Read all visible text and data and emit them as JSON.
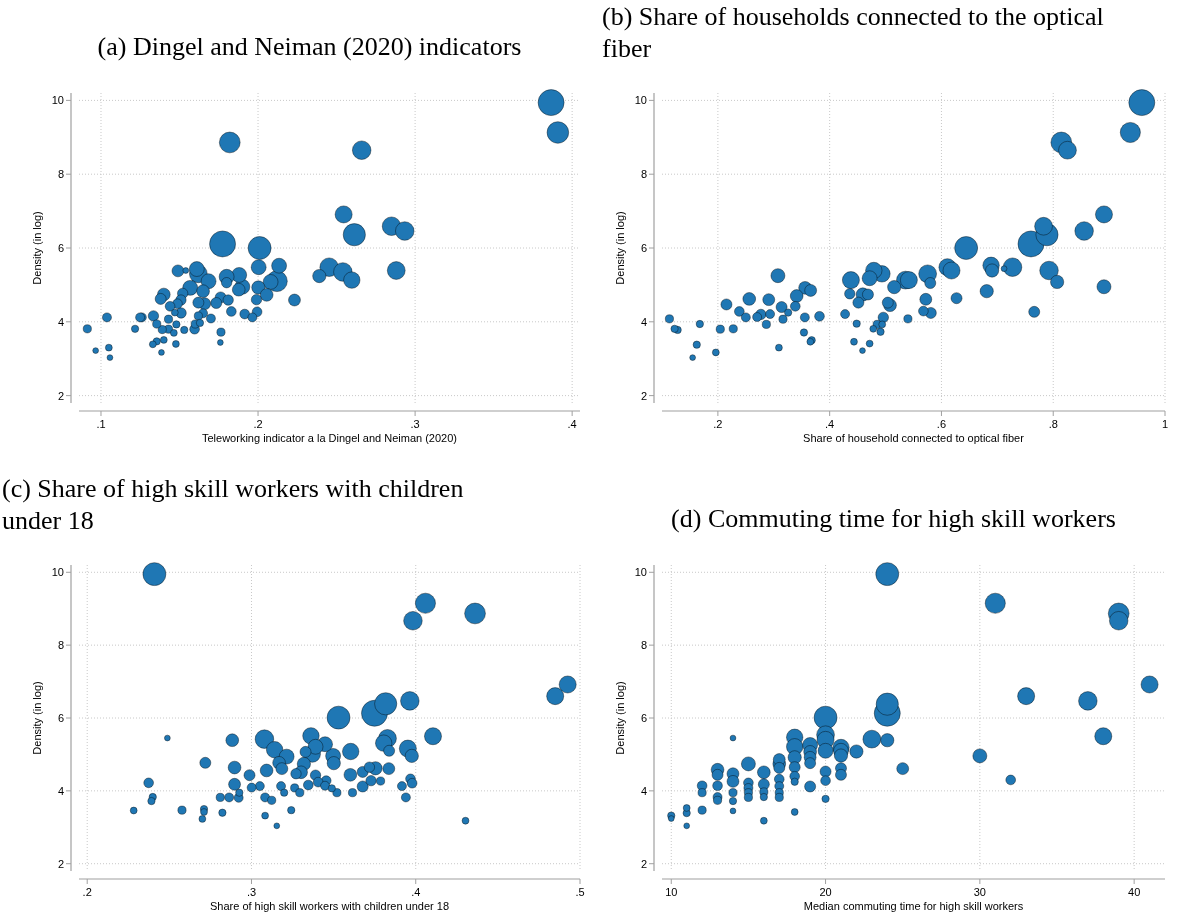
{
  "chart_data": [
    {
      "type": "bubble",
      "title": "(a) Dingel and Neiman (2020) indicators",
      "xlabel": "Teleworking indicator a la Dingel and Neiman (2020)",
      "ylabel": "Density (in log)",
      "xlim": [
        0.086,
        0.405
      ],
      "ylim": [
        1.8,
        10.2
      ],
      "xticks": [
        {
          "value": 0.1,
          "label": ".1"
        },
        {
          "value": 0.2,
          "label": ".2"
        },
        {
          "value": 0.3,
          "label": ".3"
        },
        {
          "value": 0.4,
          "label": ".4"
        }
      ],
      "yticks": [
        2,
        4,
        6,
        8,
        10
      ],
      "grid": true,
      "series": [
        {
          "color": "#1f77b4",
          "x": [
            0.3866,
            0.3909,
            0.182,
            0.266,
            0.2545,
            0.285,
            0.2934,
            0.2613,
            0.1774,
            0.201,
            0.288,
            0.2453,
            0.254,
            0.2597,
            0.239,
            0.2232,
            0.2134,
            0.212,
            0.208,
            0.2004,
            0.2002,
            0.2055,
            0.199,
            0.1994,
            0.1964,
            0.1915,
            0.19,
            0.188,
            0.1877,
            0.18,
            0.18,
            0.181,
            0.1762,
            0.183,
            0.1734,
            0.17,
            0.1764,
            0.176,
            0.1685,
            0.162,
            0.161,
            0.165,
            0.166,
            0.162,
            0.1568,
            0.165,
            0.162,
            0.163,
            0.16,
            0.1596,
            0.154,
            0.149,
            0.152,
            0.1509,
            0.1487,
            0.151,
            0.147,
            0.144,
            0.14,
            0.138,
            0.143,
            0.148,
            0.153,
            0.143,
            0.1464,
            0.139,
            0.1355,
            0.1334,
            0.14,
            0.1355,
            0.133,
            0.1477,
            0.1385,
            0.126,
            0.1249,
            0.1217,
            0.1038,
            0.0913,
            0.0966,
            0.105,
            0.1057
          ],
          "values": [
            9.94,
            9.13,
            8.86,
            8.65,
            6.91,
            6.59,
            6.46,
            6.36,
            6.11,
            6.0,
            5.39,
            5.48,
            5.35,
            5.13,
            5.24,
            4.59,
            5.52,
            5.1,
            5.08,
            5.48,
            4.93,
            4.73,
            4.6,
            4.27,
            4.12,
            4.21,
            4.95,
            5.27,
            4.87,
            5.22,
            5.06,
            4.59,
            4.66,
            4.28,
            4.51,
            4.09,
            3.72,
            3.44,
            5.1,
            5.3,
            5.43,
            4.83,
            4.49,
            4.52,
            4.92,
            4.23,
            4.16,
            3.97,
            3.94,
            3.8,
            5.39,
            5.38,
            4.77,
            4.59,
            4.49,
            4.24,
            4.25,
            4.42,
            4.74,
            4.62,
            4.07,
            3.93,
            3.78,
            3.8,
            3.7,
            3.79,
            3.94,
            4.16,
            3.51,
            3.47,
            3.39,
            3.4,
            3.17,
            4.12,
            4.12,
            3.81,
            4.12,
            3.81,
            3.22,
            3.3,
            3.03
          ],
          "sizes": [
            1,
            0.69,
            0.64,
            0.51,
            0.43,
            0.51,
            0.51,
            0.73,
            1,
            0.78,
            0.47,
            0.51,
            0.51,
            0.4,
            0.26,
            0.21,
            0.33,
            0.64,
            0.33,
            0.33,
            0.26,
            0.24,
            0.16,
            0.14,
            0.12,
            0.14,
            0.33,
            0.33,
            0.24,
            0.33,
            0.16,
            0.16,
            0.18,
            0.14,
            0.18,
            0.12,
            0.1,
            0.05,
            0.33,
            0.47,
            0.33,
            0.24,
            0.21,
            0.18,
            0.33,
            0.12,
            0.1,
            0.08,
            0.1,
            0.14,
            0.05,
            0.21,
            0.16,
            0.16,
            0.14,
            0.16,
            0.07,
            0.14,
            0.24,
            0.18,
            0.1,
            0.08,
            0.08,
            0.1,
            0.07,
            0.1,
            0.1,
            0.16,
            0.07,
            0.08,
            0.07,
            0.07,
            0.05,
            0.12,
            0.12,
            0.08,
            0.12,
            0.1,
            0.05,
            0.07,
            0.05
          ]
        }
      ]
    },
    {
      "type": "bubble",
      "title": "(b) Share of households connected to the optical fiber",
      "xlabel": "Share of household connected to optical fiber",
      "ylabel": "Density (in log)",
      "xlim": [
        0.1,
        1.0
      ],
      "ylim": [
        1.8,
        10.2
      ],
      "xticks": [
        {
          "value": 0.2,
          "label": ".2"
        },
        {
          "value": 0.4,
          "label": ".4"
        },
        {
          "value": 0.6,
          "label": ".6"
        },
        {
          "value": 0.8,
          "label": ".8"
        },
        1
      ],
      "yticks": [
        2,
        4,
        6,
        8,
        10
      ],
      "grid": true,
      "series": [
        {
          "color": "#1f77b4",
          "x": [
            0.9585,
            0.938,
            0.8145,
            0.8255,
            0.8908,
            0.7827,
            0.8553,
            0.7888,
            0.7602,
            0.6442,
            0.7925,
            0.7272,
            0.6888,
            0.6906,
            0.712,
            0.6107,
            0.618,
            0.5753,
            0.58,
            0.807,
            0.8908,
            0.681,
            0.627,
            0.766,
            0.572,
            0.5677,
            0.581,
            0.54,
            0.5417,
            0.5356,
            0.5155,
            0.508,
            0.504,
            0.4935,
            0.479,
            0.4715,
            0.438,
            0.4593,
            0.4685,
            0.4514,
            0.436,
            0.496,
            0.4276,
            0.4483,
            0.485,
            0.494,
            0.491,
            0.478,
            0.4435,
            0.4715,
            0.4587,
            0.3818,
            0.366,
            0.356,
            0.341,
            0.3385,
            0.3556,
            0.354,
            0.3678,
            0.3654,
            0.3074,
            0.314,
            0.3165,
            0.3257,
            0.3092,
            0.291,
            0.2934,
            0.2867,
            0.2769,
            0.2702,
            0.2561,
            0.25,
            0.2384,
            0.2153,
            0.2275,
            0.2043,
            0.1963,
            0.1677,
            0.1622,
            0.1548,
            0.128,
            0.1225,
            0.1133
          ],
          "values": [
            9.94,
            9.13,
            8.86,
            8.65,
            6.91,
            6.59,
            6.46,
            6.36,
            6.11,
            6.0,
            5.39,
            5.48,
            5.53,
            5.39,
            5.44,
            5.48,
            5.39,
            5.3,
            5.05,
            5.08,
            4.95,
            4.83,
            4.64,
            4.27,
            4.61,
            4.29,
            4.24,
            4.08,
            5.13,
            5.13,
            4.94,
            4.45,
            4.52,
            5.3,
            5.39,
            5.18,
            5.13,
            4.74,
            4.74,
            4.52,
            4.76,
            4.12,
            4.21,
            3.95,
            3.93,
            3.93,
            3.73,
            3.81,
            3.46,
            3.41,
            3.22,
            4.15,
            4.85,
            4.92,
            4.7,
            4.42,
            4.12,
            3.71,
            3.5,
            3.46,
            5.25,
            4.4,
            4.07,
            4.25,
            3.3,
            4.6,
            4.21,
            3.93,
            4.2,
            4.13,
            4.62,
            4.12,
            4.28,
            4.47,
            3.81,
            3.8,
            3.17,
            3.94,
            3.38,
            3.03,
            3.78,
            3.81,
            4.08
          ],
          "sizes": [
            1,
            0.6,
            0.64,
            0.47,
            0.43,
            0.47,
            0.51,
            0.73,
            1,
            0.78,
            0.51,
            0.51,
            0.4,
            0.26,
            0.05,
            0.43,
            0.43,
            0.47,
            0.18,
            0.26,
            0.29,
            0.26,
            0.18,
            0.18,
            0.21,
            0.14,
            0.18,
            0.1,
            0.43,
            0.47,
            0.26,
            0.24,
            0.18,
            0.4,
            0.4,
            0.33,
            0.43,
            0.26,
            0.18,
            0.18,
            0.16,
            0.16,
            0.12,
            0.08,
            0.1,
            0.07,
            0.08,
            0.07,
            0.07,
            0.07,
            0.05,
            0.14,
            0.21,
            0.24,
            0.24,
            0.14,
            0.12,
            0.08,
            0.08,
            0.07,
            0.29,
            0.18,
            0.1,
            0.08,
            0.07,
            0.21,
            0.12,
            0.1,
            0.16,
            0.12,
            0.24,
            0.12,
            0.14,
            0.18,
            0.1,
            0.1,
            0.07,
            0.08,
            0.08,
            0.05,
            0.08,
            0.08,
            0.1
          ]
        }
      ]
    },
    {
      "type": "bubble",
      "title": "(c) Share of high skill workers with children under 18",
      "xlabel": "Share of high skill workers with children under 18",
      "ylabel": "Density (in log)",
      "xlim": [
        0.195,
        0.5
      ],
      "ylim": [
        1.8,
        10.2
      ],
      "xticks": [
        {
          "value": 0.2,
          "label": ".2"
        },
        {
          "value": 0.3,
          "label": ".3"
        },
        {
          "value": 0.4,
          "label": ".4"
        },
        {
          "value": 0.5,
          "label": ".5"
        }
      ],
      "yticks": [
        2,
        4,
        6,
        8,
        10
      ],
      "grid": true,
      "series": [
        {
          "color": "#1f77b4",
          "x": [
            0.2409,
            0.4059,
            0.3983,
            0.4361,
            0.4925,
            0.4849,
            0.3964,
            0.3817,
            0.3749,
            0.353,
            0.4105,
            0.3828,
            0.3805,
            0.3838,
            0.3952,
            0.3976,
            0.3836,
            0.3755,
            0.3718,
            0.3728,
            0.3677,
            0.3677,
            0.3786,
            0.3604,
            0.3602,
            0.3615,
            0.3501,
            0.3497,
            0.3448,
            0.339,
            0.3362,
            0.337,
            0.3329,
            0.3319,
            0.3302,
            0.3271,
            0.3214,
            0.3141,
            0.3168,
            0.3185,
            0.3079,
            0.3092,
            0.2988,
            0.339,
            0.3455,
            0.3406,
            0.3346,
            0.3448,
            0.3489,
            0.352,
            0.3263,
            0.3294,
            0.318,
            0.3199,
            0.3051,
            0.3001,
            0.2883,
            0.2897,
            0.2897,
            0.2926,
            0.2922,
            0.2864,
            0.281,
            0.2823,
            0.3083,
            0.3123,
            0.3242,
            0.3083,
            0.3154,
            0.2719,
            0.2711,
            0.2711,
            0.2701,
            0.2577,
            0.2488,
            0.2374,
            0.2399,
            0.2391,
            0.2283,
            0.3916,
            0.3968,
            0.3978,
            0.394,
            0.4303
          ],
          "values": [
            9.95,
            9.15,
            8.67,
            8.87,
            6.92,
            6.6,
            6.47,
            6.39,
            6.13,
            6.01,
            5.5,
            5.44,
            5.31,
            5.1,
            5.16,
            4.96,
            4.61,
            4.62,
            4.65,
            4.28,
            4.52,
            4.12,
            4.27,
            5.08,
            4.44,
            3.95,
            4.76,
            4.96,
            5.28,
            5.21,
            5.51,
            5.01,
            5.07,
            4.74,
            4.51,
            4.47,
            4.94,
            5.13,
            4.77,
            4.61,
            5.42,
            4.56,
            4.43,
            4.43,
            4.28,
            4.24,
            4.16,
            4.14,
            4.07,
            3.95,
            4.08,
            3.95,
            4.13,
            3.95,
            4.13,
            4.09,
            5.39,
            4.64,
            4.18,
            3.95,
            3.81,
            3.82,
            3.82,
            3.4,
            3.82,
            3.74,
            3.47,
            3.32,
            3.04,
            4.77,
            3.5,
            3.42,
            3.23,
            3.47,
            5.45,
            4.22,
            3.83,
            3.72,
            3.46,
            4.13,
            4.33,
            4.21,
            3.82,
            3.18
          ],
          "sizes": [
            0.78,
            0.6,
            0.51,
            0.64,
            0.43,
            0.43,
            0.51,
            0.73,
            1,
            0.78,
            0.43,
            0.47,
            0.4,
            0.18,
            0.43,
            0.26,
            0.21,
            0.26,
            0.16,
            0.16,
            0.18,
            0.18,
            0.1,
            0.4,
            0.24,
            0.1,
            0.26,
            0.33,
            0.33,
            0.33,
            0.4,
            0.4,
            0.18,
            0.26,
            0.24,
            0.16,
            0.33,
            0.4,
            0.24,
            0.21,
            0.51,
            0.24,
            0.18,
            0.16,
            0.14,
            0.14,
            0.14,
            0.12,
            0.08,
            0.1,
            0.1,
            0.1,
            0.12,
            0.08,
            0.12,
            0.12,
            0.24,
            0.24,
            0.21,
            0.08,
            0.12,
            0.12,
            0.1,
            0.08,
            0.12,
            0.1,
            0.08,
            0.07,
            0.05,
            0.18,
            0.08,
            0.07,
            0.07,
            0.1,
            0.05,
            0.14,
            0.08,
            0.08,
            0.07,
            0.12,
            0.14,
            0.14,
            0.12,
            0.07
          ]
        }
      ]
    },
    {
      "type": "bubble",
      "title": "(d) Commuting time for high skill workers",
      "xlabel": "Median commuting time for high skill workers",
      "ylabel": "Density (in log)",
      "xlim": [
        9.4,
        42
      ],
      "ylim": [
        1.8,
        10.2
      ],
      "xticks": [
        10,
        20,
        30,
        40
      ],
      "yticks": [
        2,
        4,
        6,
        8,
        10
      ],
      "grid": true,
      "series": [
        {
          "color": "#1f77b4",
          "x": [
            24,
            31,
            39,
            39,
            41,
            33,
            37,
            24,
            24,
            20,
            38,
            23,
            24,
            30,
            25,
            32,
            22,
            21,
            21,
            21,
            21,
            21,
            20,
            20,
            20,
            20,
            20,
            20,
            19,
            19,
            19,
            19,
            19,
            18,
            18,
            18,
            18,
            18,
            18,
            18,
            17,
            17,
            17,
            17,
            17,
            17,
            17,
            16,
            16,
            16,
            16,
            16,
            15,
            15,
            15,
            15,
            15,
            14,
            14,
            14,
            14,
            14,
            14,
            13,
            13,
            13,
            13,
            13,
            12,
            12,
            12,
            11,
            11,
            11,
            10,
            10
          ],
          "values": [
            9.95,
            9.15,
            8.87,
            8.67,
            6.92,
            6.6,
            6.47,
            6.38,
            6.13,
            6.01,
            5.5,
            5.42,
            5.39,
            4.96,
            4.61,
            4.3,
            5.08,
            5.19,
            5.1,
            4.97,
            4.62,
            4.44,
            5.54,
            5.4,
            5.1,
            4.53,
            4.28,
            3.78,
            5.26,
            5.07,
            4.92,
            4.76,
            4.12,
            5.47,
            5.21,
            4.92,
            4.65,
            4.4,
            4.25,
            3.42,
            4.86,
            4.74,
            4.63,
            4.32,
            4.13,
            3.95,
            3.82,
            4.51,
            4.18,
            3.97,
            3.83,
            3.18,
            4.74,
            4.22,
            4.08,
            3.95,
            3.82,
            4.47,
            4.26,
            3.95,
            3.72,
            3.45,
            5.45,
            4.58,
            4.44,
            4.14,
            3.83,
            3.74,
            4.14,
            3.95,
            3.47,
            3.53,
            3.39,
            3.04,
            3.32,
            3.24
          ],
          "sizes": [
            0.78,
            0.6,
            0.64,
            0.51,
            0.43,
            0.43,
            0.51,
            0.73,
            1,
            0.78,
            0.43,
            0.47,
            0.26,
            0.29,
            0.21,
            0.14,
            0.26,
            0.4,
            0.33,
            0.26,
            0.18,
            0.18,
            0.47,
            0.43,
            0.33,
            0.18,
            0.14,
            0.08,
            0.33,
            0.24,
            0.21,
            0.18,
            0.18,
            0.4,
            0.4,
            0.26,
            0.18,
            0.14,
            0.08,
            0.07,
            0.21,
            0.24,
            0.18,
            0.14,
            0.12,
            0.1,
            0.1,
            0.24,
            0.18,
            0.1,
            0.08,
            0.07,
            0.29,
            0.14,
            0.12,
            0.1,
            0.1,
            0.21,
            0.21,
            0.1,
            0.08,
            0.05,
            0.05,
            0.24,
            0.18,
            0.14,
            0.12,
            0.1,
            0.14,
            0.1,
            0.1,
            0.07,
            0.08,
            0.05,
            0.08,
            0.05
          ]
        }
      ]
    }
  ]
}
